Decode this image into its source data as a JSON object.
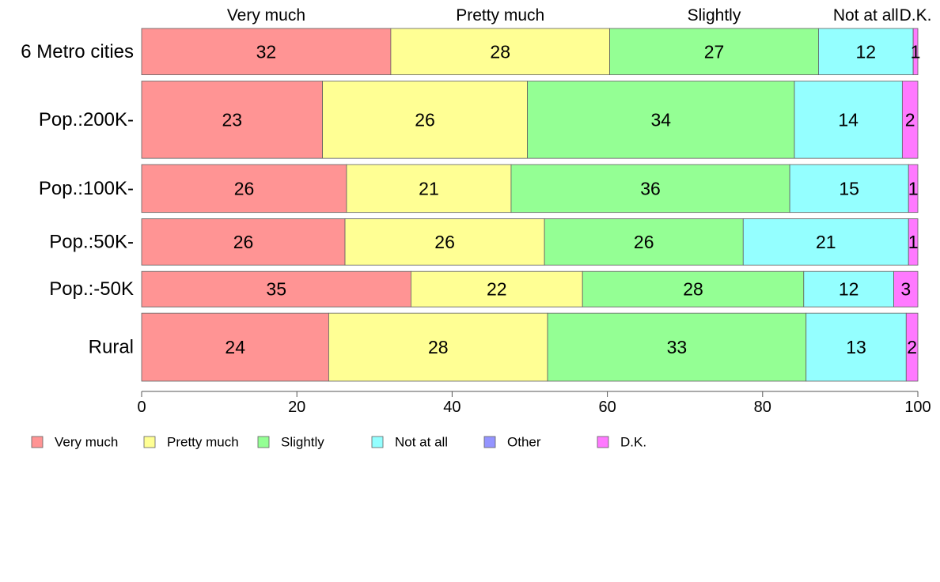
{
  "chart_data": {
    "type": "bar",
    "orientation": "horizontal",
    "stacked": true,
    "title": "",
    "xlabel": "",
    "ylabel": "",
    "xlim": [
      0,
      100
    ],
    "x_ticks": [
      "0",
      "20",
      "40",
      "60",
      "80",
      "100"
    ],
    "x_tick_values": [
      0,
      20,
      40,
      60,
      80,
      100
    ],
    "categories": [
      "6 Metro cities",
      "Pop.:200K-",
      "Pop.:100K-",
      "Pop.:50K-",
      "Pop.:-50K",
      "Rural"
    ],
    "bar_widths": [
      60,
      100,
      62,
      60,
      46,
      88
    ],
    "top_labels": [
      "Very much",
      "Pretty much",
      "Slightly",
      "Not at all",
      "D.K."
    ],
    "legend_position": "bottom",
    "legend": [
      "Very much",
      "Pretty much",
      "Slightly",
      "Not at all",
      "Other",
      "D.K."
    ],
    "series": [
      {
        "name": "Very much",
        "color": "#FF9494",
        "values": [
          32.1,
          23.3,
          26.4,
          26.2,
          34.7,
          24.1
        ]
      },
      {
        "name": "Pretty much",
        "color": "#FFFF94",
        "values": [
          28.2,
          26.4,
          21.2,
          25.7,
          22.1,
          28.2
        ]
      },
      {
        "name": "Slightly",
        "color": "#94FF94",
        "values": [
          26.9,
          34.4,
          35.9,
          25.6,
          28.5,
          33.3
        ]
      },
      {
        "name": "Not at all",
        "color": "#94FFFF",
        "values": [
          12.2,
          13.9,
          15.3,
          21.3,
          11.6,
          12.9
        ]
      },
      {
        "name": "Other",
        "color": "#9494FF",
        "values": [
          0.0,
          0.0,
          0.0,
          0.0,
          0.0,
          0.0
        ]
      },
      {
        "name": "D.K.",
        "color": "#FF79FF",
        "values": [
          0.6,
          2.0,
          1.2,
          1.2,
          3.1,
          1.5
        ]
      }
    ],
    "value_labels": [
      [
        "32",
        "28",
        "27",
        "12",
        "",
        "1"
      ],
      [
        "23",
        "26",
        "34",
        "14",
        "",
        "2"
      ],
      [
        "26",
        "21",
        "36",
        "15",
        "",
        "1"
      ],
      [
        "26",
        "26",
        "26",
        "21",
        "",
        "1"
      ],
      [
        "35",
        "22",
        "28",
        "12",
        "",
        "3"
      ],
      [
        "24",
        "28",
        "33",
        "13",
        "",
        "2"
      ]
    ]
  }
}
